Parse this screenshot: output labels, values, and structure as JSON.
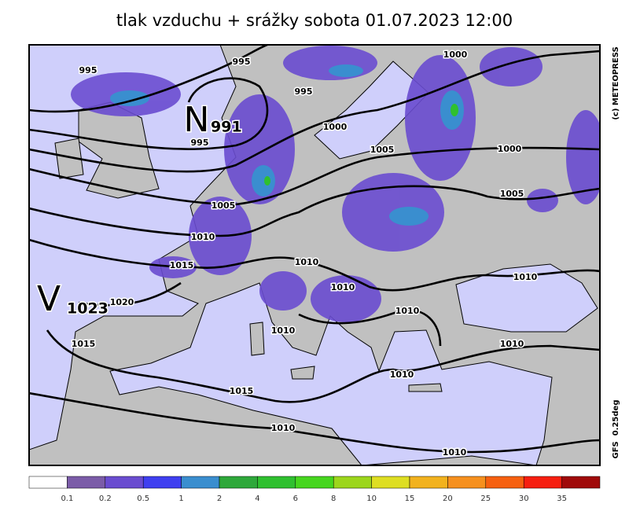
{
  "title": "tlak vzduchu + srážky  sobota 01.07.2023 12:00",
  "credit": "(c) METEOPRESS",
  "model": "GFS  0.25deg",
  "centers": [
    {
      "letter": "N",
      "value": 991
    },
    {
      "letter": "V",
      "value": 1023
    }
  ],
  "isobar_labels": [
    995,
    995,
    995,
    995,
    1000,
    1000,
    1000,
    1005,
    1005,
    1005,
    1010,
    1010,
    1010,
    1010,
    1010,
    1010,
    1010,
    1010,
    1010,
    1010,
    1015,
    1015,
    1015,
    1020
  ],
  "legend": {
    "colors": [
      "#ffffff",
      "#7b5ca8",
      "#6a4cd0",
      "#3f3ff0",
      "#3a8ecf",
      "#2ea83a",
      "#2fc02f",
      "#46d61e",
      "#9cd61c",
      "#dede22",
      "#f2b21e",
      "#f6901e",
      "#f66010",
      "#f61e10",
      "#a00a0a"
    ],
    "labels": [
      0.1,
      0.2,
      0.5,
      1,
      2,
      4,
      6,
      8,
      10,
      15,
      20,
      25,
      30,
      35
    ]
  }
}
